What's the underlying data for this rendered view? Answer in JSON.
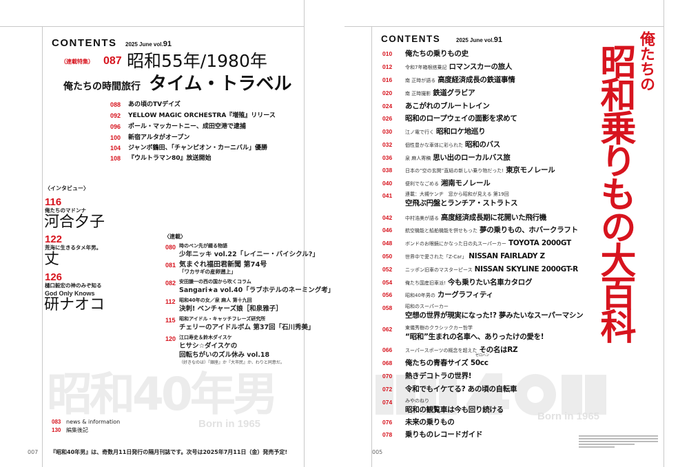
{
  "left_page": {
    "header": {
      "title": "CONTENTS",
      "issue_prefix": "2025 June vol.",
      "issue_no": "91"
    },
    "feature": {
      "label": "（連載特集）",
      "page": "087",
      "title": "昭和55年/1980年",
      "subtitle": "俺たちの時間旅行",
      "title2": "タイム・トラベル"
    },
    "feature_items": [
      {
        "page": "088",
        "title": "あの頃のTVデイズ"
      },
      {
        "page": "092",
        "title": "YELLOW MAGIC ORCHESTRA『増殖』リリース"
      },
      {
        "page": "096",
        "title": "ポール・マッカートニー、成田空港で逮捕"
      },
      {
        "page": "100",
        "title": "新宿アルタがオープン"
      },
      {
        "page": "104",
        "title": "ジャンボ鶴田、「チャンピオン・カーニバル」優勝"
      },
      {
        "page": "108",
        "title": "『ウルトラマン80』放送開始"
      }
    ],
    "interview": {
      "label": "〈インタビュー〉",
      "items": [
        {
          "page": "116",
          "caption": "俺たちのマドンナ",
          "name": "河合夕子"
        },
        {
          "page": "122",
          "caption": "荒海に生きるタメ年男。",
          "name": "丈"
        },
        {
          "page": "126",
          "caption": "樋口毅宏の神のみぞ知る",
          "caption2": "God Only Knows",
          "name": "研ナオコ"
        }
      ]
    },
    "serial": {
      "label": "〈連載〉",
      "items": [
        {
          "page": "080",
          "line1": "時のペン先が綴る物語",
          "line2": "少年ニッキ vol.22「レイニー・バイシクル?」"
        },
        {
          "page": "081",
          "line1": "気まぐれ福田君新聞 第74号",
          "line2": "「ワカサギの産卵遡上」"
        },
        {
          "page": "082",
          "line1": "安田謙一の西の国から吹くコラム",
          "line2": "Sangari★a vol.40「ラブホテルのネーミング考」"
        },
        {
          "page": "112",
          "line1": "昭和40年の女／泉 麻人 第十九回",
          "line2": "決刺! ベンチャーズ娘［和泉雅子］"
        },
        {
          "page": "115",
          "line1": "昭和アイドル・キャッチフレーズ研究所",
          "line2": "チェリーのアイドルボム 第37回「石川秀美」"
        },
        {
          "page": "120",
          "line1": "江口寿史＆鈴木ダイスケ",
          "line2": "ヒサシ☆ダイスケの",
          "line3": "回転ちがいのズル休み vol.18",
          "line4": "（好きなのは）『銀座』か『大市民』か、わりと同意だ。"
        }
      ]
    },
    "watermark": {
      "logo": "昭和40年男",
      "born": "Born in 1965"
    },
    "news": [
      {
        "page": "083",
        "title": "news & information"
      },
      {
        "page": "130",
        "title": "編集後記"
      }
    ],
    "footer": {
      "page_no": "007",
      "note": "『昭和40年男』は、奇数月11日発行の隔月刊誌です。次号は2025年7月11日（金）発売予定!"
    }
  },
  "right_page": {
    "header": {
      "title": "CONTENTS",
      "issue_prefix": "2025 June vol.",
      "issue_no": "91"
    },
    "feature_title": {
      "small": "俺たちの",
      "big": "昭和乗りもの大百科"
    },
    "items": [
      {
        "page": "010",
        "sub": "",
        "title": "俺たちの乗りもの史"
      },
      {
        "page": "012",
        "sub": "令和7年箱根搭乗記",
        "title": "ロマンスカーの旅人"
      },
      {
        "page": "016",
        "sub": "南 正時が語る",
        "title": "高度経済成長の鉄道事情"
      },
      {
        "page": "020",
        "sub": "南 正時撮影",
        "title": "鉄道グラビア"
      },
      {
        "page": "024",
        "sub": "",
        "title": "あこがれのブルートレイン"
      },
      {
        "page": "026",
        "sub": "",
        "title": "昭和のロープウェイの面影を求めて"
      },
      {
        "page": "030",
        "sub": "江ノ電で行く",
        "title": "昭和ロケ地巡り"
      },
      {
        "page": "032",
        "sub": "個性豊かな車体に彩られた",
        "title": "昭和のバス"
      },
      {
        "page": "036",
        "sub": "泉 麻人寄稿",
        "title": "思い出のローカルバス旅"
      },
      {
        "page": "038",
        "sub": "日本の“空の玄関”直結の新しい乗り物だった!",
        "title": "東京モノレール"
      },
      {
        "page": "040",
        "sub": "便利でなごめる",
        "title": "湘南モノレール"
      },
      {
        "page": "041",
        "sub": "連載：大槻ケンヂ　窓から昭和が見える 第19回",
        "title": "空飛ぶ円盤とランチア・ストラトス",
        "two_line": true
      },
      {
        "page": "042",
        "sub": "中村浩美が語る",
        "title": "高度経済成長期に花開いた飛行機"
      },
      {
        "page": "046",
        "sub": "航空機能と船舶機能を併せもった",
        "title": "夢の乗りもの、ホバークラフト"
      },
      {
        "page": "048",
        "sub": "ボンドのお眼鏡にかなった日の丸スーパーカー",
        "title": "TOYOTA 2000GT"
      },
      {
        "page": "050",
        "sub": "世界中で愛された「Z-Car」",
        "title": "NISSAN FAIRLADY Z"
      },
      {
        "page": "052",
        "sub": "ニッポン旧車のマスターピース",
        "title": "NISSAN SKYLINE 2000GT-R"
      },
      {
        "page": "054",
        "sub": "俺たち国産旧車派!",
        "title": "今も乗りたい名車カタログ"
      },
      {
        "page": "056",
        "sub": "昭和40年男の",
        "title": "カーグラフィティ"
      },
      {
        "page": "058",
        "sub": "昭和のスーパーカー",
        "title": "空想の世界が現実になった!? 夢みたいなスーパーマシン",
        "two_line": true
      },
      {
        "page": "062",
        "sub": "東儀秀樹のクラシックカー哲学",
        "title": "“昭和”生まれの名車へ、ありったけの愛を!",
        "two_line": true
      },
      {
        "page": "066",
        "sub": "スーパースポーツの概念を超えた",
        "title": "その名はRZ"
      },
      {
        "page": "068",
        "sub": "",
        "title": "俺たちの青春サイズ 50cc",
        "ruby": "ゼロハン"
      },
      {
        "page": "070",
        "sub": "",
        "title": "熱きデコトラの世界!"
      },
      {
        "page": "072",
        "sub": "",
        "title": "令和でもイケてる? あの頃の自転車"
      },
      {
        "page": "074",
        "sub": "みやのねり",
        "title": "昭和の観覧車は今も回り続ける",
        "two_line": true
      },
      {
        "page": "076",
        "sub": "",
        "title": "未来の乗りもの"
      },
      {
        "page": "078",
        "sub": "",
        "title": "乗りものレコードガイド"
      }
    ],
    "watermark": {
      "logo": "昭和40年男",
      "born": "Born in 1965"
    },
    "footer": {
      "page_no": "005"
    }
  },
  "colors": {
    "accent": "#d7141e",
    "rule": "#c8c8c8",
    "watermark": "#ececec"
  }
}
